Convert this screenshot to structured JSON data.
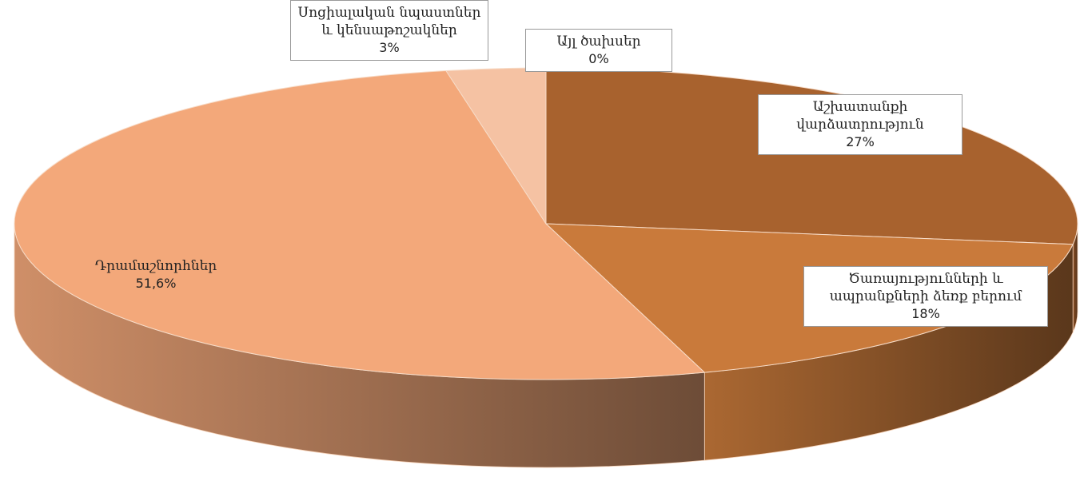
{
  "chart_data": {
    "type": "pie",
    "categories": [
      "Աշխատանքի վարձատրություն",
      "Ծառայությունների և ապրանքների ձեռք բերում",
      "Դրամաշնորհներ",
      "Սոցիալական նպաստներ և կենսաթոշակներ",
      "Այլ ծախսեր"
    ],
    "values": [
      27,
      18,
      51.6,
      3,
      0
    ],
    "value_labels": [
      "27%",
      "18%",
      "51,6%",
      "3%",
      "0%"
    ],
    "colors": [
      "#a8622e",
      "#c97a3b",
      "#f3a87a",
      "#f5c2a3",
      "#f2d3bd"
    ]
  }
}
